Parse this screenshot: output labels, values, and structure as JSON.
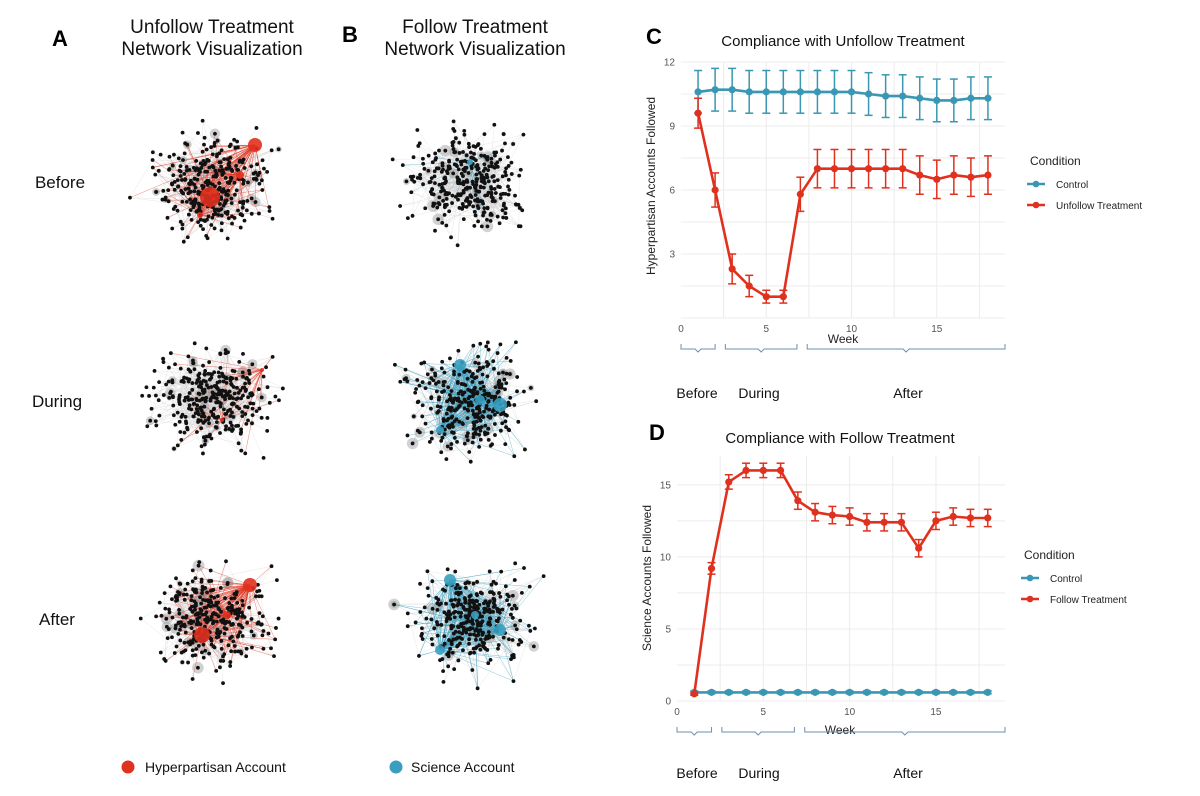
{
  "panels": {
    "A": {
      "letter": "A",
      "title_line1": "Unfollow Treatment",
      "title_line2": "Network Visualization",
      "accent": "#e0301e",
      "legend_label": "Hyperpartisan Account"
    },
    "B": {
      "letter": "B",
      "title_line1": "Follow Treatment",
      "title_line2": "Network Visualization",
      "accent": "#3a9fbf",
      "legend_label": "Science Account"
    },
    "rows": [
      "Before",
      "During",
      "After"
    ]
  },
  "colors": {
    "control": "#3a97b3",
    "treatment": "#e0301e",
    "phase_bracket": "#6d8fb0"
  },
  "chart_data": [
    {
      "type": "line",
      "letter": "C",
      "title": "Compliance with Unfollow Treatment",
      "xlabel": "Week",
      "ylabel": "Hyperpartisan Accounts Followed",
      "xlim": [
        0,
        19
      ],
      "ylim": [
        0,
        12
      ],
      "xticks": [
        0,
        5,
        10,
        15
      ],
      "yticks": [
        3,
        6,
        9,
        12
      ],
      "legend_title": "Condition",
      "legend_position": "right",
      "phases": [
        {
          "label": "Before",
          "start": 0,
          "end": 2
        },
        {
          "label": "During",
          "start": 2.6,
          "end": 6.8
        },
        {
          "label": "After",
          "start": 7.4,
          "end": 19
        }
      ],
      "series": [
        {
          "name": "Control",
          "color": "#3a97b3",
          "x": [
            1,
            2,
            3,
            4,
            5,
            6,
            7,
            8,
            9,
            10,
            11,
            12,
            13,
            14,
            15,
            16,
            17,
            18
          ],
          "y": [
            10.6,
            10.7,
            10.7,
            10.6,
            10.6,
            10.6,
            10.6,
            10.6,
            10.6,
            10.6,
            10.5,
            10.4,
            10.4,
            10.3,
            10.2,
            10.2,
            10.3,
            10.3
          ],
          "err": [
            1.0,
            1.0,
            1.0,
            1.0,
            1.0,
            1.0,
            1.0,
            1.0,
            1.0,
            1.0,
            1.0,
            1.0,
            1.0,
            1.0,
            1.0,
            1.0,
            1.0,
            1.0
          ]
        },
        {
          "name": "Unfollow Treatment",
          "color": "#e0301e",
          "x": [
            1,
            2,
            3,
            4,
            5,
            6,
            7,
            8,
            9,
            10,
            11,
            12,
            13,
            14,
            15,
            16,
            17,
            18
          ],
          "y": [
            9.6,
            6.0,
            2.3,
            1.5,
            1.0,
            1.0,
            5.8,
            7.0,
            7.0,
            7.0,
            7.0,
            7.0,
            7.0,
            6.7,
            6.5,
            6.7,
            6.6,
            6.7
          ],
          "err": [
            0.7,
            0.8,
            0.7,
            0.5,
            0.3,
            0.3,
            0.8,
            0.9,
            0.9,
            0.9,
            0.9,
            0.9,
            0.9,
            0.9,
            0.9,
            0.9,
            0.9,
            0.9
          ]
        }
      ]
    },
    {
      "type": "line",
      "letter": "D",
      "title": "Compliance with Follow Treatment",
      "xlabel": "Week",
      "ylabel": "Science Accounts Followed",
      "xlim": [
        0,
        19
      ],
      "ylim": [
        0,
        17
      ],
      "xticks": [
        0,
        5,
        10,
        15
      ],
      "yticks": [
        0,
        5,
        10,
        15
      ],
      "legend_title": "Condition",
      "legend_position": "right",
      "phases": [
        {
          "label": "Before",
          "start": 0,
          "end": 2
        },
        {
          "label": "During",
          "start": 2.6,
          "end": 6.8
        },
        {
          "label": "After",
          "start": 7.4,
          "end": 19
        }
      ],
      "series": [
        {
          "name": "Control",
          "color": "#3a97b3",
          "x": [
            1,
            2,
            3,
            4,
            5,
            6,
            7,
            8,
            9,
            10,
            11,
            12,
            13,
            14,
            15,
            16,
            17,
            18
          ],
          "y": [
            0.6,
            0.6,
            0.6,
            0.6,
            0.6,
            0.6,
            0.6,
            0.6,
            0.6,
            0.6,
            0.6,
            0.6,
            0.6,
            0.6,
            0.6,
            0.6,
            0.6,
            0.6
          ],
          "err": [
            0.1,
            0.1,
            0.1,
            0.1,
            0.1,
            0.1,
            0.1,
            0.1,
            0.1,
            0.1,
            0.1,
            0.1,
            0.1,
            0.1,
            0.1,
            0.1,
            0.1,
            0.1
          ]
        },
        {
          "name": "Follow Treatment",
          "color": "#e0301e",
          "x": [
            1,
            2,
            3,
            4,
            5,
            6,
            7,
            8,
            9,
            10,
            11,
            12,
            13,
            14,
            15,
            16,
            17,
            18
          ],
          "y": [
            0.5,
            9.2,
            15.2,
            16.0,
            16.0,
            16.0,
            13.9,
            13.1,
            12.9,
            12.8,
            12.4,
            12.4,
            12.4,
            10.6,
            12.5,
            12.8,
            12.7,
            12.7
          ],
          "err": [
            0.1,
            0.4,
            0.5,
            0.5,
            0.5,
            0.5,
            0.6,
            0.6,
            0.6,
            0.6,
            0.6,
            0.6,
            0.6,
            0.6,
            0.6,
            0.6,
            0.6,
            0.6
          ]
        }
      ]
    }
  ]
}
